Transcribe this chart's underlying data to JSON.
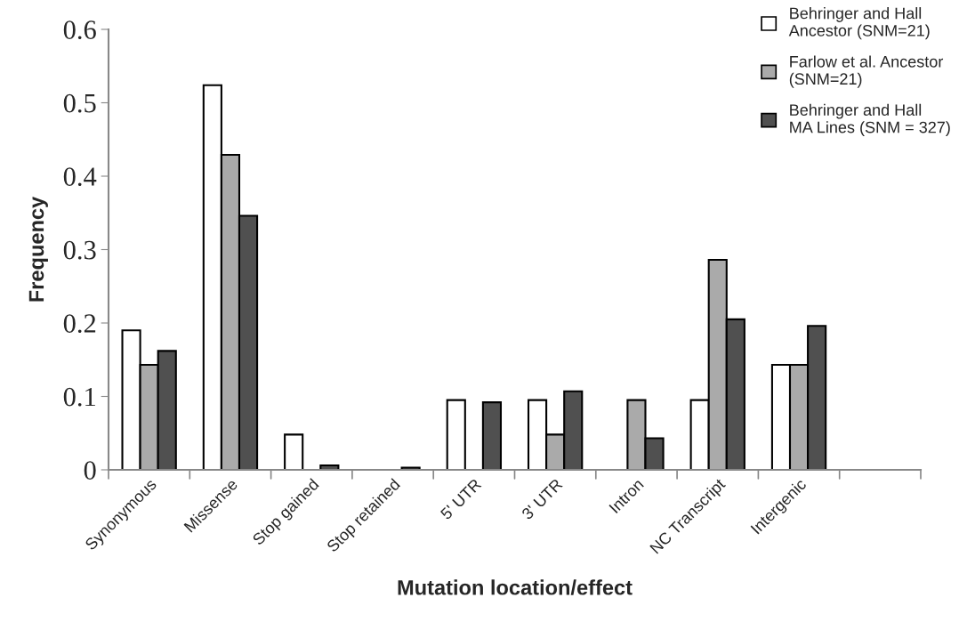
{
  "chart_data": {
    "type": "bar",
    "xlabel": "Mutation location/effect",
    "ylabel": "Frequency",
    "categories": [
      "Synonymous",
      "Missense",
      "Stop gained",
      "Stop retained",
      "5' UTR",
      "3' UTR",
      "Intron",
      "NC Transcript",
      "Intergenic",
      null
    ],
    "series": [
      {
        "name": "Behringer and Hall\nAncestor (SNM=21)",
        "color": "#ffffff",
        "values": [
          0.19,
          0.524,
          0.048,
          0,
          0.095,
          0.095,
          0,
          0.095,
          0.143,
          null
        ]
      },
      {
        "name": "Farlow et al. Ancestor\n(SNM=21)",
        "color": "#aaaaaa",
        "values": [
          0.143,
          0.429,
          0,
          0,
          0,
          0.048,
          0.095,
          0.286,
          0.143,
          null
        ]
      },
      {
        "name": "Behringer and Hall\nMA Lines (SNM = 327)",
        "color": "#505050",
        "values": [
          0.162,
          0.346,
          0.006,
          0.003,
          0.092,
          0.107,
          0.043,
          0.205,
          0.196,
          null
        ]
      }
    ],
    "ylim": [
      0,
      0.6
    ],
    "yticks": [
      0,
      0.1,
      0.2,
      0.3,
      0.4,
      0.5,
      0.6
    ],
    "grid": false,
    "legend": "top right"
  }
}
